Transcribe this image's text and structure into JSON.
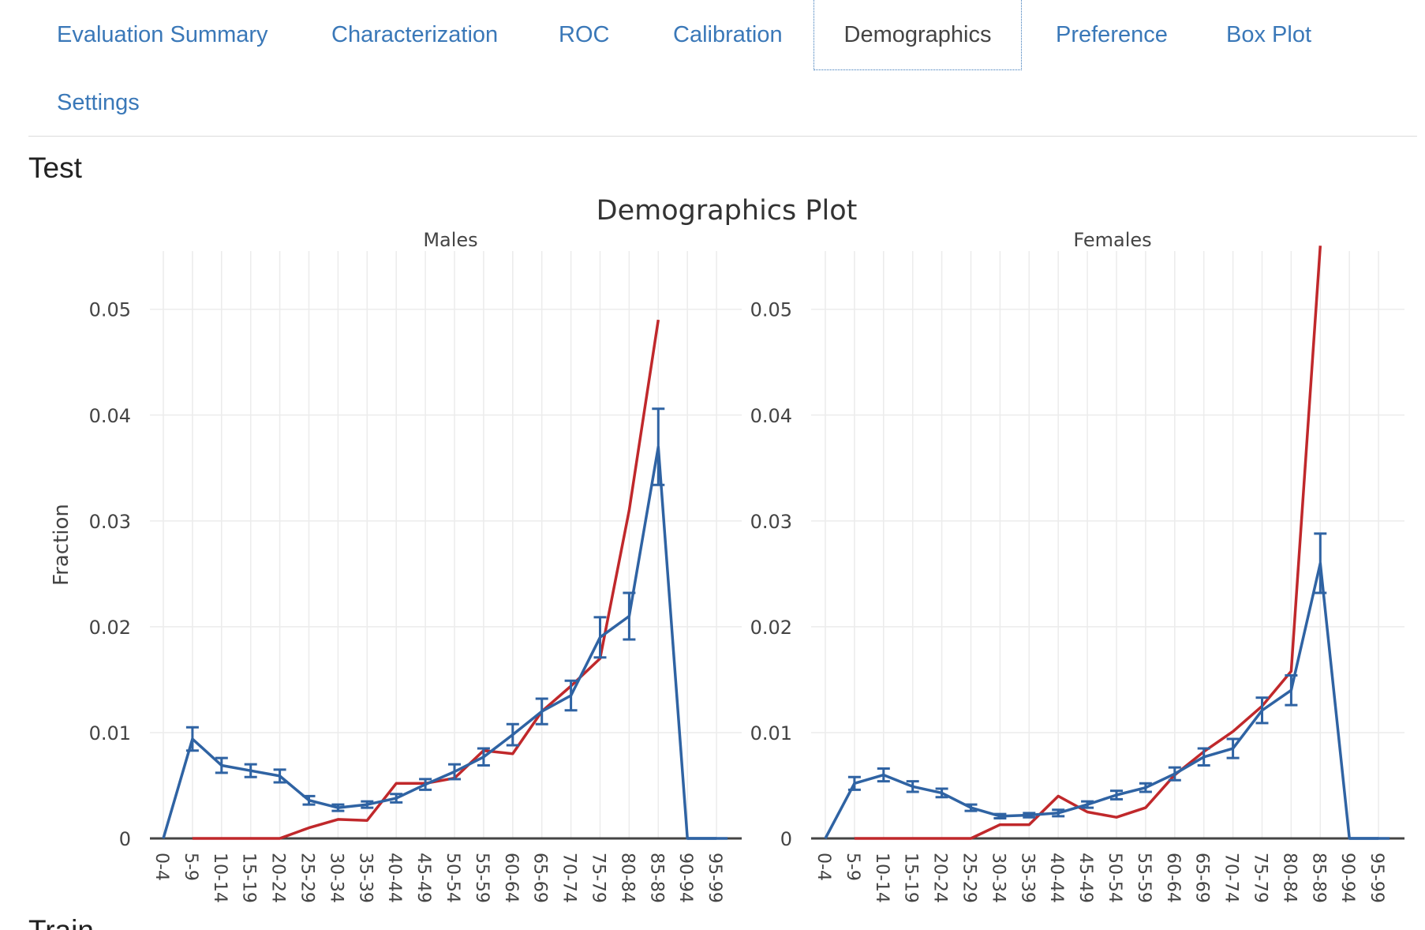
{
  "tabs": [
    {
      "label": "Evaluation Summary",
      "active": false
    },
    {
      "label": "Characterization",
      "active": false
    },
    {
      "label": "ROC",
      "active": false
    },
    {
      "label": "Calibration",
      "active": false
    },
    {
      "label": "Demographics",
      "active": true
    },
    {
      "label": "Preference",
      "active": false
    },
    {
      "label": "Box Plot",
      "active": false
    },
    {
      "label": "Settings",
      "active": false
    }
  ],
  "section_title": "Test",
  "next_section_title": "Train",
  "chart_data": {
    "type": "line",
    "title": "Demographics Plot",
    "ylabel": "Fraction",
    "ylim": [
      0,
      0.0555
    ],
    "yticks": [
      0,
      0.01,
      0.02,
      0.03,
      0.04,
      0.05
    ],
    "ytick_labels": [
      "0",
      "0.01",
      "0.02",
      "0.03",
      "0.04",
      "0.05"
    ],
    "categories": [
      "0-4",
      "5-9",
      "10-14",
      "15-19",
      "20-24",
      "25-29",
      "30-34",
      "35-39",
      "40-44",
      "45-49",
      "50-54",
      "55-59",
      "60-64",
      "65-69",
      "70-74",
      "75-79",
      "80-84",
      "85-89",
      "90-94",
      "95-99"
    ],
    "colors": {
      "observed": "#2f63a3",
      "expected": "#c0282b"
    },
    "panels": [
      {
        "name": "Males",
        "observed": [
          0,
          0.0094,
          0.0069,
          0.0064,
          0.0059,
          0.0036,
          0.0029,
          0.0032,
          0.0038,
          0.0051,
          0.0063,
          0.0077,
          0.0098,
          0.012,
          0.0135,
          0.019,
          0.021,
          0.037,
          0,
          0
        ],
        "error": [
          0,
          0.0011,
          0.0007,
          0.0006,
          0.0006,
          0.0004,
          0.0003,
          0.0003,
          0.0004,
          0.0005,
          0.0007,
          0.0008,
          0.001,
          0.0012,
          0.0014,
          0.0019,
          0.0022,
          0.0036,
          0,
          0
        ],
        "expected": [
          null,
          0,
          0,
          0,
          0,
          0.001,
          0.0018,
          0.0017,
          0.0052,
          0.0052,
          0.0057,
          0.0083,
          0.008,
          0.012,
          0.0144,
          0.017,
          0.031,
          0.049,
          null,
          null
        ]
      },
      {
        "name": "Females",
        "observed": [
          0,
          0.0052,
          0.006,
          0.0049,
          0.0043,
          0.0029,
          0.0021,
          0.0022,
          0.0024,
          0.0032,
          0.0041,
          0.0048,
          0.0061,
          0.0077,
          0.0085,
          0.0121,
          0.014,
          0.026,
          0,
          0
        ],
        "error": [
          0,
          0.0006,
          0.0006,
          0.0005,
          0.0004,
          0.0003,
          0.0002,
          0.0002,
          0.0003,
          0.0003,
          0.0004,
          0.0004,
          0.0006,
          0.0008,
          0.0009,
          0.0012,
          0.0014,
          0.0028,
          0,
          0
        ],
        "expected": [
          null,
          0,
          0,
          0,
          0,
          0,
          0.0013,
          0.0013,
          0.004,
          0.0025,
          0.002,
          0.0029,
          0.006,
          0.0082,
          0.0101,
          0.0125,
          0.0158,
          0.056,
          null,
          null
        ]
      }
    ]
  }
}
